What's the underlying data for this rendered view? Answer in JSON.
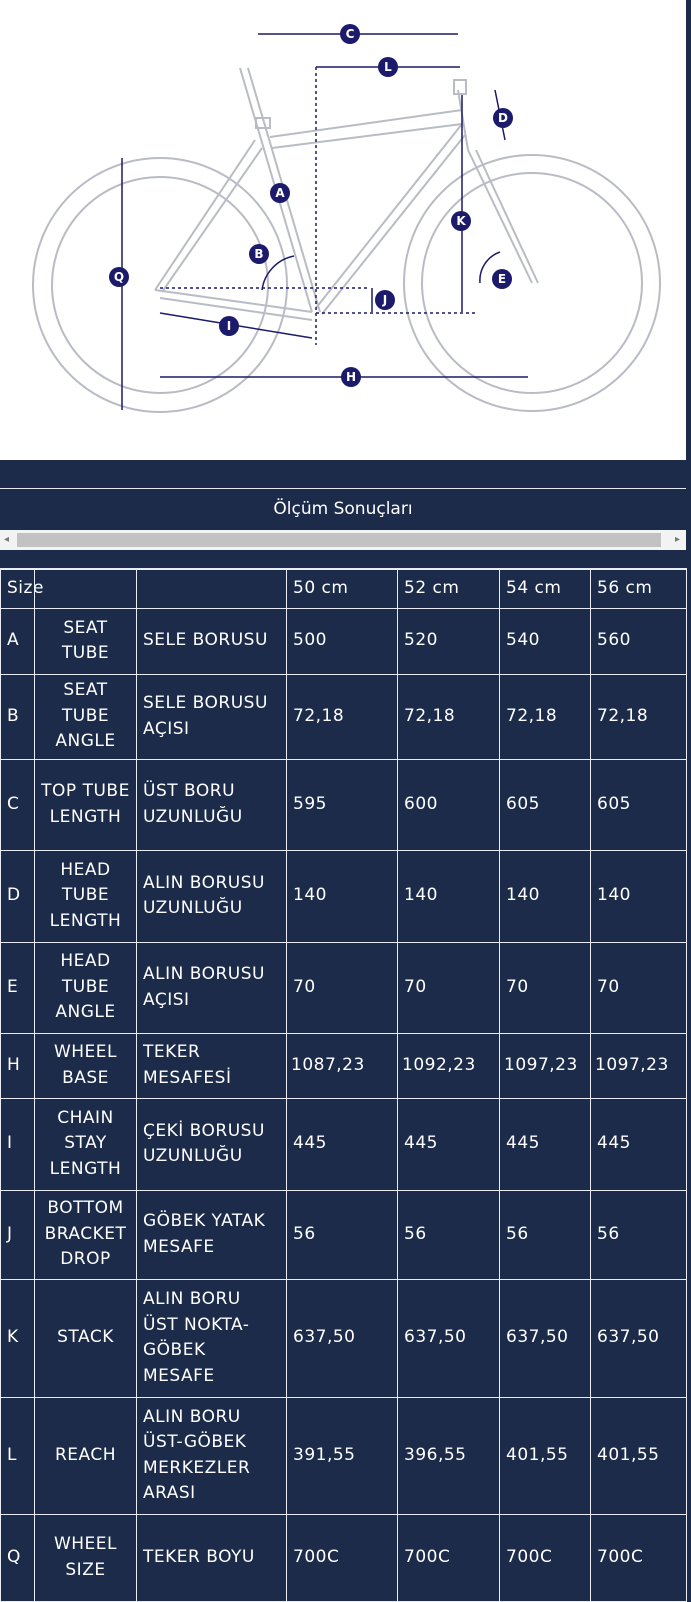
{
  "diagram": {
    "labels": [
      "C",
      "L",
      "D",
      "A",
      "K",
      "B",
      "E",
      "J",
      "Q",
      "I",
      "H"
    ],
    "colors": {
      "label_fill": "#1b1a6b",
      "frame": "#b9bcc4",
      "background": "#ffffff"
    }
  },
  "table_title": "Ölçüm Sonuçları",
  "scrollbar": {
    "left_arrow": "◂",
    "right_arrow": "▸"
  },
  "header": {
    "size_label": "Size",
    "sizes": [
      "50 cm",
      "52 cm",
      "54 cm",
      "56 cm"
    ]
  },
  "rows": [
    {
      "code": "A",
      "en": "SEAT TUBE",
      "tr": "SELE BORUSU",
      "values": [
        "500",
        "520",
        "540",
        "560"
      ]
    },
    {
      "code": "B",
      "en": "SEAT TUBE ANGLE",
      "tr": "SELE BORUSU AÇISI",
      "values": [
        "72,18",
        "72,18",
        "72,18",
        "72,18"
      ]
    },
    {
      "code": "C",
      "en": "TOP TUBE LENGTH",
      "tr": "ÜST BORU UZUNLUĞU",
      "values": [
        "595",
        "600",
        "605",
        "605"
      ]
    },
    {
      "code": "D",
      "en": "HEAD TUBE LENGTH",
      "tr": "ALIN BORUSU UZUNLUĞU",
      "values": [
        "140",
        "140",
        "140",
        "140"
      ]
    },
    {
      "code": "E",
      "en": "HEAD TUBE ANGLE",
      "tr": "ALIN BORUSU AÇISI",
      "values": [
        "70",
        "70",
        "70",
        "70"
      ]
    },
    {
      "code": "H",
      "en": "WHEEL BASE",
      "tr": "TEKER MESAFESİ",
      "values": [
        "1087,23",
        "1092,23",
        "1097,23",
        "1097,23"
      ]
    },
    {
      "code": "I",
      "en": "CHAIN STAY LENGTH",
      "tr": "ÇEKİ BORUSU UZUNLUĞU",
      "values": [
        "445",
        "445",
        "445",
        "445"
      ]
    },
    {
      "code": "J",
      "en": "BOTTOM BRACKET DROP",
      "tr": "GÖBEK YATAK MESAFE",
      "values": [
        "56",
        "56",
        "56",
        "56"
      ]
    },
    {
      "code": "K",
      "en": "STACK",
      "tr": "ALIN BORU ÜST NOKTA- GÖBEK MESAFE",
      "values": [
        "637,50",
        "637,50",
        "637,50",
        "637,50"
      ]
    },
    {
      "code": "L",
      "en": "REACH",
      "tr": "ALIN BORU ÜST-GÖBEK MERKEZLER ARASI",
      "values": [
        "391,55",
        "396,55",
        "401,55",
        "401,55"
      ]
    },
    {
      "code": "Q",
      "en": "WHEEL SIZE",
      "tr": "TEKER BOYU",
      "values": [
        "700C",
        "700C",
        "700C",
        "700C"
      ]
    }
  ]
}
